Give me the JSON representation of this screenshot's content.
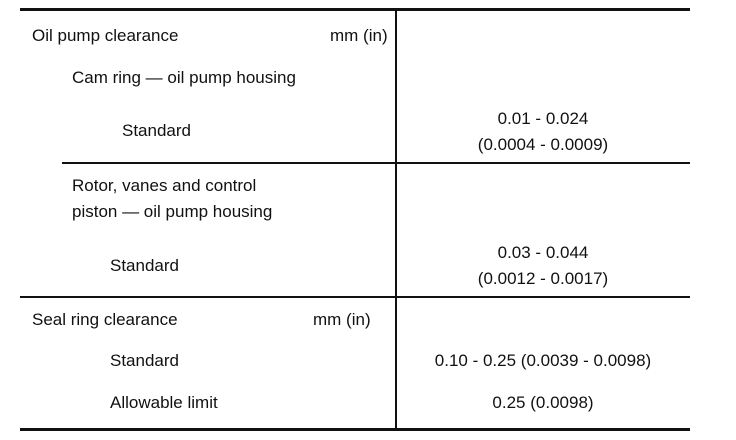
{
  "sections": [
    {
      "title": "Oil pump clearance",
      "unit": "mm (in)",
      "items": [
        {
          "label": "Cam ring — oil pump housing",
          "rows": [
            {
              "label": "Standard",
              "value": [
                "0.01 - 0.024",
                "(0.0004 - 0.0009)"
              ]
            }
          ]
        },
        {
          "label": [
            "Rotor, vanes and control",
            "piston — oil pump housing"
          ],
          "rows": [
            {
              "label": "Standard",
              "value": [
                "0.03 - 0.044",
                "(0.0012 - 0.0017)"
              ]
            }
          ]
        }
      ]
    },
    {
      "title": "Seal ring clearance",
      "unit": "mm (in)",
      "rows": [
        {
          "label": "Standard",
          "value": "0.10 - 0.25 (0.0039 - 0.0098)"
        },
        {
          "label": "Allowable limit",
          "value": "0.25 (0.0098)"
        }
      ]
    }
  ]
}
